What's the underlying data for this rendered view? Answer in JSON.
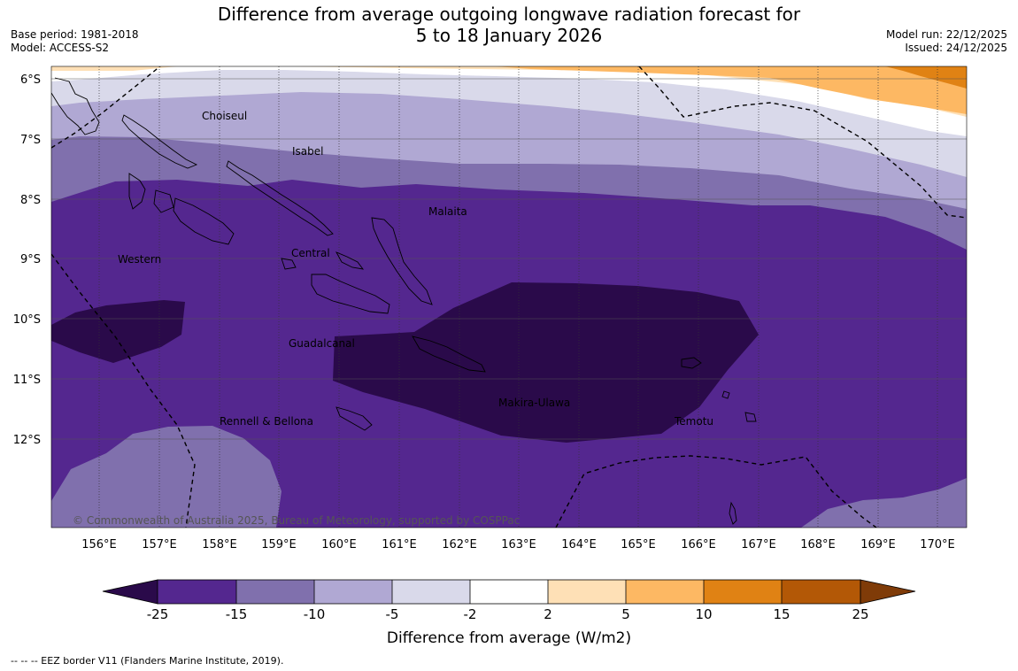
{
  "header": {
    "title_line1": "Difference from average outgoing longwave radiation forecast for",
    "title_line2": "5 to 18 January 2026",
    "base_period": "Base period: 1981-2018",
    "model": "Model: ACCESS-S2",
    "model_run": "Model run: 22/12/2025",
    "issued": "Issued: 24/12/2025"
  },
  "map": {
    "lat_labels": [
      "6°S",
      "7°S",
      "8°S",
      "9°S",
      "10°S",
      "11°S",
      "12°S"
    ],
    "lon_labels": [
      "156°E",
      "157°E",
      "158°E",
      "159°E",
      "160°E",
      "161°E",
      "162°E",
      "163°E",
      "164°E",
      "165°E",
      "166°E",
      "167°E",
      "168°E",
      "169°E",
      "170°E"
    ],
    "regions": [
      "Choiseul",
      "Isabel",
      "Malaita",
      "Western",
      "Central",
      "Guadalcanal",
      "Makira-Ulawa",
      "Rennell & Bellona",
      "Temotu"
    ],
    "copyright": "© Commonwealth of Australia 2025, Bureau of Meteorology, supported by COSPPac"
  },
  "colorbar": {
    "ticks": [
      "-25",
      "-15",
      "-10",
      "-5",
      "-2",
      "2",
      "5",
      "10",
      "15",
      "25"
    ],
    "colors": [
      "#2a0a4a",
      "#54278f",
      "#8070ad",
      "#b0a8d3",
      "#d9d9ea",
      "#ffffff",
      "#fee0b6",
      "#fdb863",
      "#e08214",
      "#b35806",
      "#7f3b08"
    ],
    "label": "Difference from average (W/m2)"
  },
  "footer": {
    "legend": "--  --  -- EEZ border V11 (Flanders Marine Institute, 2019)."
  }
}
